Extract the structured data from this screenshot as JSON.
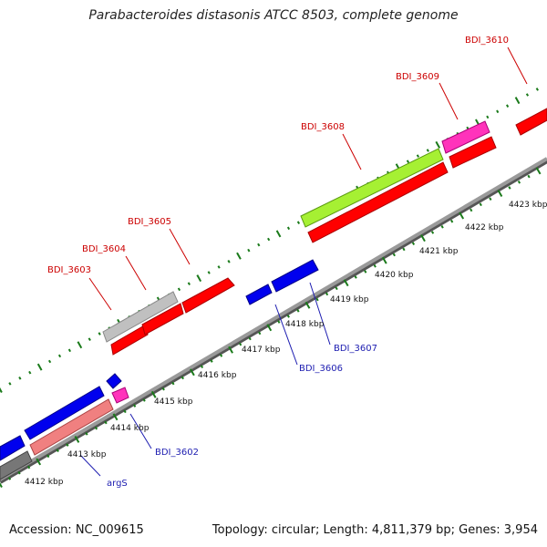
{
  "title": "Parabacteroides distasonis ATCC 8503, complete genome",
  "accession": "Accession: NC_009615",
  "topology": "Topology: circular; Length: 4,811,379 bp; Genes: 3,954",
  "colors": {
    "backbone": "#8a8a8a",
    "tick": "#1a7a1a",
    "forward_gene": "#ff0000",
    "reverse_gene": "#0000ee",
    "label_forward": "#cc0000",
    "label_reverse": "#1c1cb0",
    "grey_gene": "#c0c0c0",
    "green_gene": "#a6f033",
    "pink_gene": "#ff33bb",
    "salmon_gene": "#f08080"
  },
  "scale": {
    "unit": "kbp",
    "labels": [
      "4412 kbp",
      "4413 kbp",
      "4414 kbp",
      "4415 kbp",
      "4416 kbp",
      "4417 kbp",
      "4418 kbp",
      "4419 kbp",
      "4420 kbp",
      "4421 kbp",
      "4422 kbp",
      "4423 kbp"
    ]
  },
  "gene_labels": {
    "BDI_3603": "BDI_3603",
    "BDI_3604": "BDI_3604",
    "BDI_3605": "BDI_3605",
    "BDI_3608": "BDI_3608",
    "BDI_3609": "BDI_3609",
    "BDI_3610": "BDI_3610",
    "BDI_3607": "BDI_3607",
    "BDI_3606": "BDI_3606",
    "BDI_3602": "BDI_3602",
    "argS": "argS"
  }
}
